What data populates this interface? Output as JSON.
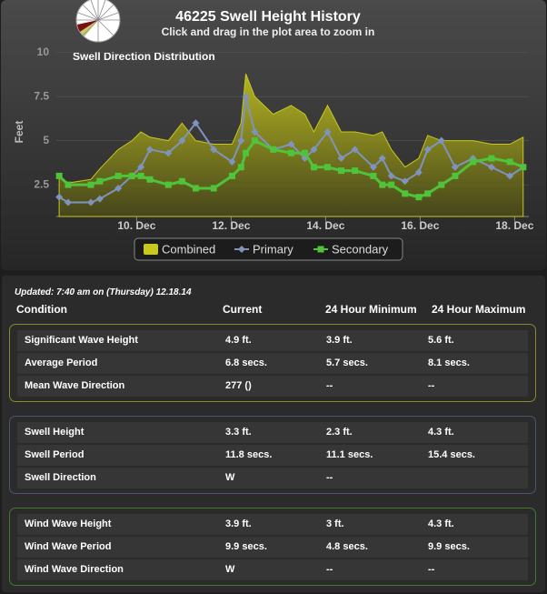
{
  "chart_data": {
    "type": "line",
    "title": "46225 Swell Height History",
    "subtitle": "Click and drag in the plot area to zoom in",
    "annotation": "Swell Direction Distribution",
    "y_label": "Feet",
    "x": [
      8.36,
      8.55,
      9.03,
      9.22,
      9.61,
      9.9,
      10.09,
      10.28,
      10.67,
      10.96,
      11.25,
      11.63,
      12.02,
      12.21,
      12.31,
      12.5,
      12.89,
      13.27,
      13.56,
      13.75,
      14.04,
      14.33,
      14.62,
      15.01,
      15.2,
      15.39,
      15.68,
      15.97,
      16.16,
      16.45,
      16.74,
      17.12,
      17.51,
      17.9,
      18.18
    ],
    "series": [
      {
        "name": "Combined",
        "color": "#c8c81e",
        "style": "area",
        "values": [
          3.0,
          2.6,
          2.8,
          3.4,
          4.5,
          5.0,
          5.5,
          5.2,
          5.0,
          6.0,
          5.0,
          4.8,
          4.8,
          6.0,
          8.8,
          7.5,
          6.5,
          7.0,
          6.5,
          5.5,
          7.0,
          5.5,
          5.5,
          5.3,
          5.5,
          4.5,
          3.5,
          4.0,
          5.3,
          5.0,
          5.0,
          5.0,
          4.8,
          4.8,
          5.2
        ]
      },
      {
        "name": "Primary",
        "color": "#7f93bc",
        "style": "diamond",
        "values": [
          1.8,
          1.5,
          1.5,
          1.7,
          2.3,
          3.0,
          3.5,
          4.5,
          4.3,
          5.0,
          6.0,
          4.5,
          3.8,
          5.0,
          7.5,
          5.5,
          4.5,
          4.8,
          4.0,
          4.5,
          5.5,
          4.0,
          4.5,
          3.5,
          4.0,
          3.0,
          2.7,
          3.2,
          4.5,
          5.0,
          3.5,
          4.0,
          3.5,
          3.0,
          3.5
        ]
      },
      {
        "name": "Secondary",
        "color": "#4fc43a",
        "style": "square",
        "values": [
          3.0,
          2.5,
          2.5,
          2.7,
          3.0,
          3.0,
          3.0,
          2.8,
          2.5,
          2.7,
          2.3,
          2.3,
          3.0,
          3.5,
          4.3,
          5.0,
          4.5,
          4.3,
          4.3,
          3.5,
          3.5,
          3.3,
          3.3,
          3.0,
          2.5,
          2.5,
          2.0,
          1.8,
          2.0,
          2.5,
          3.0,
          3.8,
          4.0,
          3.8,
          3.5
        ]
      }
    ],
    "xlim": [
      8.3,
      18.3
    ],
    "xticks": [
      {
        "value": 10,
        "label": "10. Dec"
      },
      {
        "value": 12,
        "label": "12. Dec"
      },
      {
        "value": 14,
        "label": "14. Dec"
      },
      {
        "value": 16,
        "label": "16. Dec"
      },
      {
        "value": 18,
        "label": "18. Dec"
      }
    ],
    "ylim": [
      0.7,
      10.4
    ],
    "yticks": [
      2.5,
      5,
      {
        "value": 7.5,
        "label": "7.5"
      },
      10
    ],
    "grid": true
  },
  "table": {
    "updated": "Updated: 7:40 am on (Thursday) 12.18.14",
    "headers": [
      "Condition",
      "Current",
      "24 Hour Minimum",
      "24 Hour Maximum"
    ],
    "groups": [
      [
        [
          "Significant Wave Height",
          "4.9 ft.",
          "3.9 ft.",
          "5.6 ft."
        ],
        [
          "Average Period",
          "6.8 secs.",
          "5.7 secs.",
          "8.1 secs."
        ],
        [
          "Mean Wave Direction",
          "277 ()",
          "--",
          "--"
        ]
      ],
      [
        [
          "Swell Height",
          "3.3 ft.",
          "2.3 ft.",
          "4.3 ft."
        ],
        [
          "Swell Period",
          "11.8 secs.",
          "11.1 secs.",
          "15.4 secs."
        ],
        [
          "Swell Direction",
          "W",
          "--",
          ""
        ]
      ],
      [
        [
          "Wind Wave Height",
          "3.9 ft.",
          "3 ft.",
          "4.3 ft."
        ],
        [
          "Wind Wave Period",
          "9.9 secs.",
          "4.8 secs.",
          "9.9 secs."
        ],
        [
          "Wind Wave Direction",
          "W",
          "--",
          "--"
        ]
      ]
    ]
  }
}
